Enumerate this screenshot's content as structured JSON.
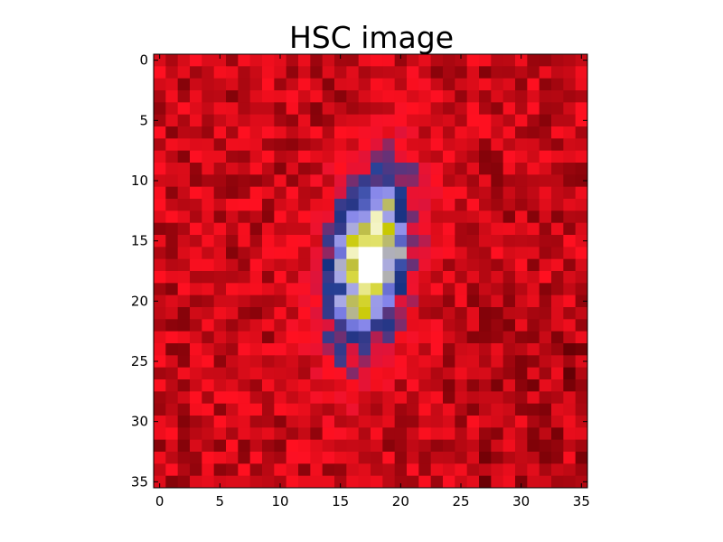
{
  "figure": {
    "title": "HSC image"
  },
  "image": {
    "rows": 36,
    "cols": 36,
    "colormap": "gist_stern",
    "x_ticks": [
      {
        "value": 0,
        "label": "0"
      },
      {
        "value": 5,
        "label": "5"
      },
      {
        "value": 10,
        "label": "10"
      },
      {
        "value": 15,
        "label": "15"
      },
      {
        "value": 20,
        "label": "20"
      },
      {
        "value": 25,
        "label": "25"
      },
      {
        "value": 30,
        "label": "30"
      },
      {
        "value": 35,
        "label": "35"
      }
    ],
    "y_ticks": [
      {
        "value": 0,
        "label": "0"
      },
      {
        "value": 5,
        "label": "5"
      },
      {
        "value": 10,
        "label": "10"
      },
      {
        "value": 15,
        "label": "15"
      },
      {
        "value": 20,
        "label": "20"
      },
      {
        "value": 25,
        "label": "25"
      },
      {
        "value": 30,
        "label": "30"
      },
      {
        "value": 35,
        "label": "35"
      }
    ],
    "source": {
      "center_x": 17.5,
      "center_y": 16.5,
      "sigma_major": 5.6,
      "sigma_minor": 2.4,
      "position_angle_deg": 10
    },
    "palette": {
      "background_red": "#ff1020",
      "background_dark": "#5a0000",
      "halo_blue": "#1a3a8a",
      "ring_lavender": "#8888ee",
      "core_yellow": "#c8c800",
      "peak_white": "#ffffff"
    }
  }
}
